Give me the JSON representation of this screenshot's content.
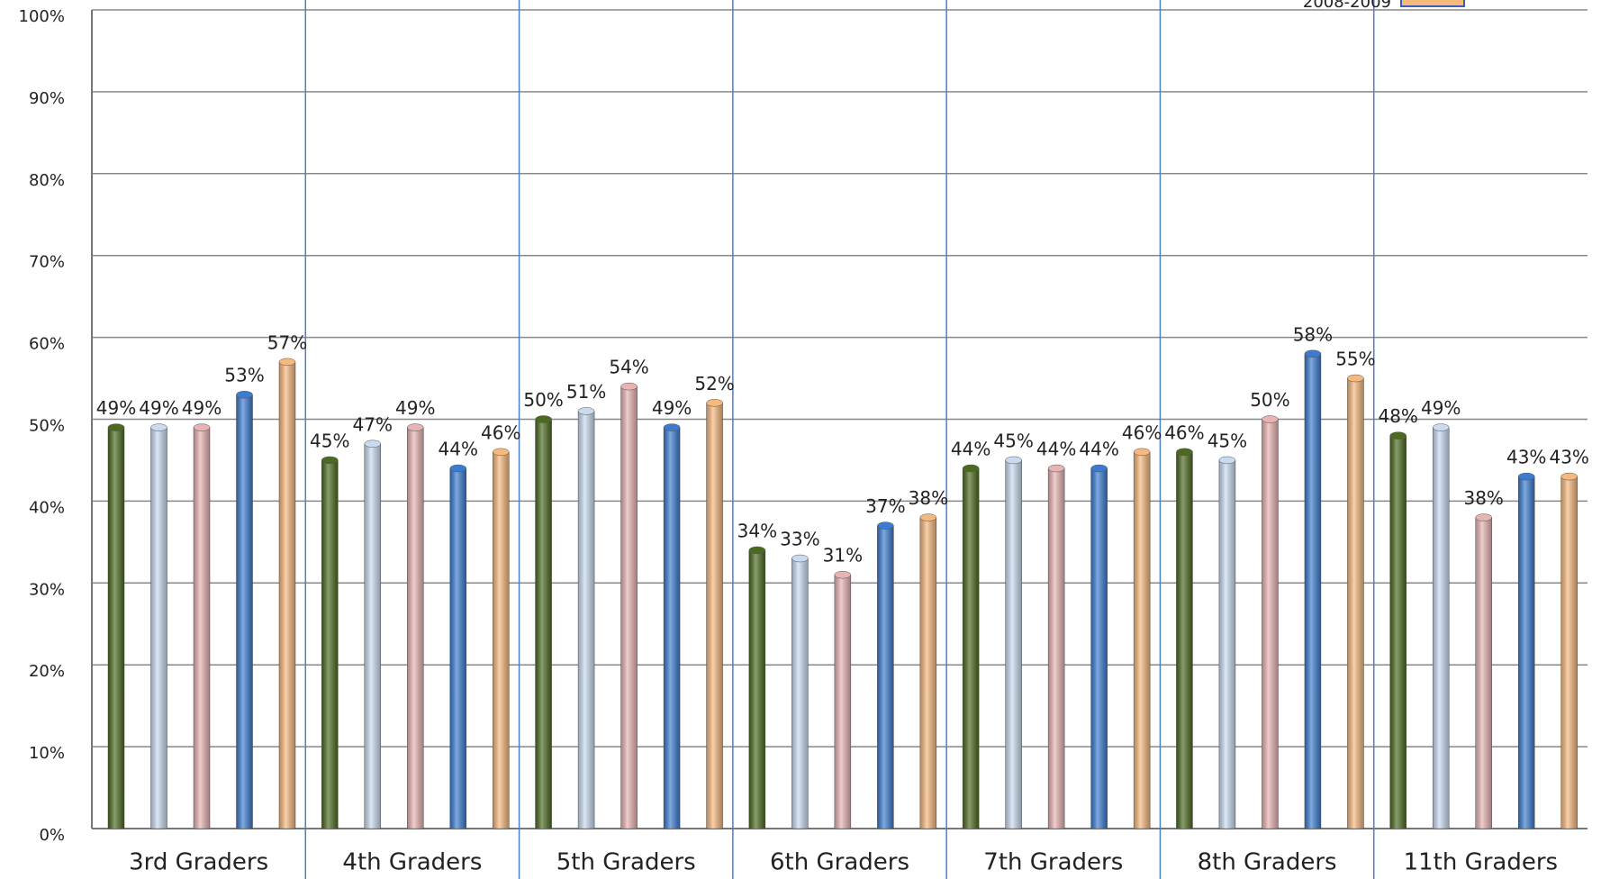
{
  "chart_data": {
    "type": "bar",
    "categories": [
      "3rd Graders",
      "4th  Graders",
      "5th Graders",
      "6th Graders",
      "7th Graders",
      "8th Graders",
      "11th Graders"
    ],
    "series": [
      {
        "color": "#4b6a1f",
        "values": [
          49,
          45,
          50,
          34,
          44,
          46,
          48
        ],
        "value_labels": [
          "49%",
          "45%",
          "50%",
          "34%",
          "44%",
          "46%",
          "48%"
        ]
      },
      {
        "color": "#c9dbf1",
        "values": [
          49,
          47,
          51,
          33,
          45,
          45,
          49
        ],
        "value_labels": [
          "49%",
          "47%",
          "51%",
          "33%",
          "45%",
          "45%",
          "49%"
        ]
      },
      {
        "color": "#e8b3b3",
        "values": [
          49,
          49,
          54,
          31,
          44,
          50,
          38
        ],
        "value_labels": [
          "49%",
          "49%",
          "54%",
          "31%",
          "44%",
          "50%",
          "38%"
        ]
      },
      {
        "color": "#3b7bd0",
        "values": [
          53,
          44,
          49,
          37,
          44,
          58,
          43
        ],
        "value_labels": [
          "53%",
          "44%",
          "49%",
          "37%",
          "44%",
          "58%",
          "43%"
        ]
      },
      {
        "name": "2008-2009",
        "color": "#f6b87d",
        "values": [
          57,
          46,
          52,
          38,
          46,
          55,
          43
        ],
        "value_labels": [
          "57%",
          "46%",
          "52%",
          "38%",
          "46%",
          "55%",
          "43%"
        ]
      }
    ],
    "ylim": [
      0,
      100
    ],
    "yticks": [
      {
        "value": 0,
        "label": "0%"
      },
      {
        "value": 10,
        "label": "10%"
      },
      {
        "value": 20,
        "label": "20%"
      },
      {
        "value": 30,
        "label": "30%"
      },
      {
        "value": 40,
        "label": "40%"
      },
      {
        "value": 50,
        "label": "50%"
      },
      {
        "value": 60,
        "label": "60%"
      },
      {
        "value": 70,
        "label": "70%"
      },
      {
        "value": 80,
        "label": "80%"
      },
      {
        "value": 90,
        "label": "90%"
      },
      {
        "value": 100,
        "label": "100%"
      }
    ],
    "grid": true
  }
}
